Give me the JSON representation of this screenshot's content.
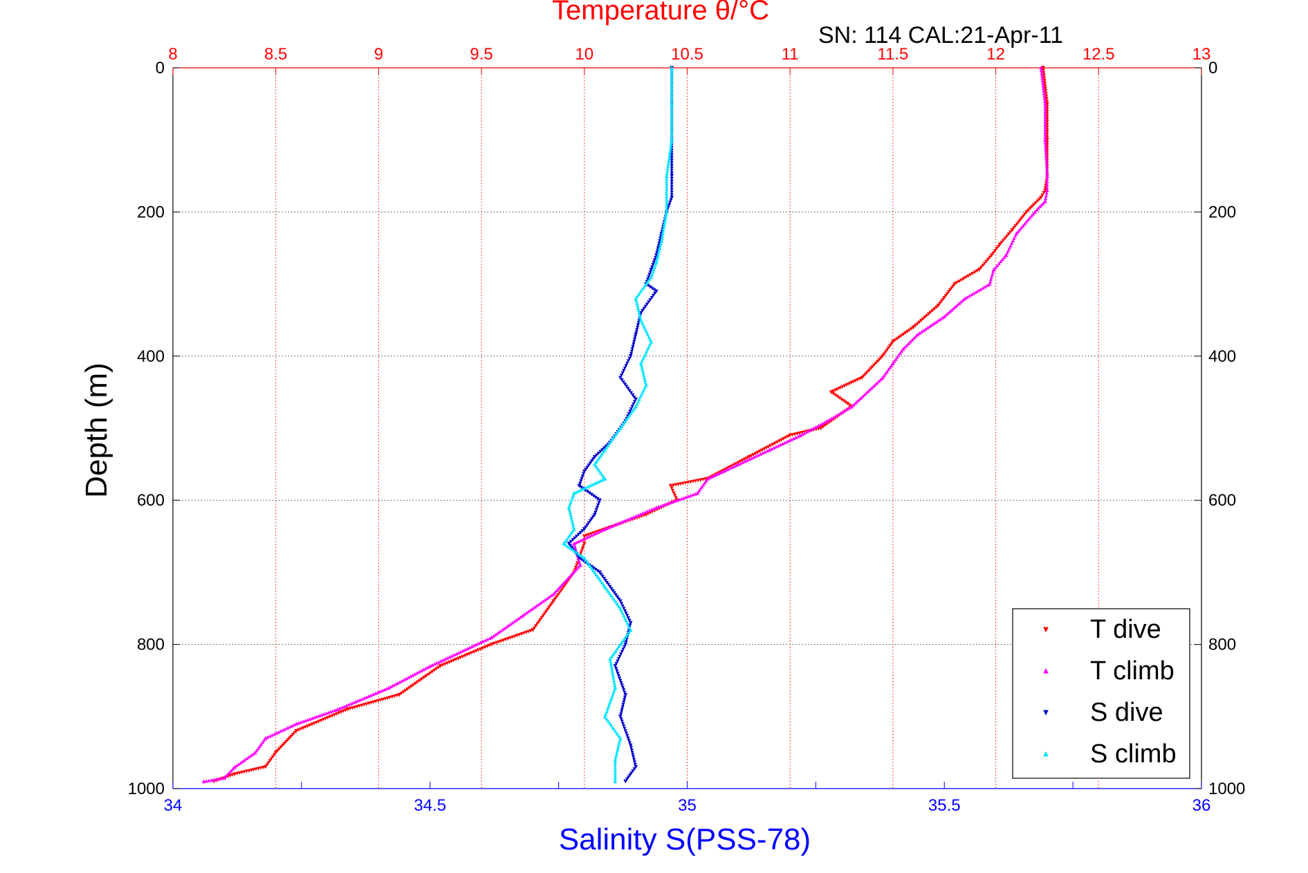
{
  "chart_data": {
    "type": "scatter",
    "title": "Temperature θ/°C",
    "subtitle": "SN: 114  CAL:21-Apr-11",
    "xlabel": "Salinity S(PSS-78)",
    "ylabel": "Depth (m)",
    "x_top": {
      "label": "Temperature θ/°C",
      "lim": [
        8,
        13
      ],
      "ticks": [
        "8",
        "8.5",
        "9",
        "9.5",
        "10",
        "10.5",
        "11",
        "11.5",
        "12",
        "12.5",
        "13"
      ],
      "color": "#ff0000"
    },
    "x_bottom": {
      "label": "Salinity S(PSS-78)",
      "lim": [
        34,
        36
      ],
      "ticks": [
        "34",
        "34.5",
        "35",
        "35.5",
        "36"
      ],
      "color": "#0000ff"
    },
    "y": {
      "lim": [
        0,
        1000
      ],
      "reversed": true,
      "ticks": [
        "0",
        "200",
        "400",
        "600",
        "800",
        "1000"
      ]
    },
    "grid": true,
    "legend_position": "bottom-right",
    "legend": [
      "T dive",
      "T climb",
      "S dive",
      "S climb"
    ],
    "series": [
      {
        "name": "T dive",
        "axis": "temperature",
        "color": "#ff0000",
        "marker": "triangle-down",
        "points": [
          [
            12.23,
            0
          ],
          [
            12.25,
            50
          ],
          [
            12.25,
            100
          ],
          [
            12.25,
            150
          ],
          [
            12.24,
            170
          ],
          [
            12.22,
            180
          ],
          [
            12.15,
            200
          ],
          [
            12.08,
            225
          ],
          [
            12.02,
            245
          ],
          [
            11.98,
            260
          ],
          [
            11.92,
            280
          ],
          [
            11.8,
            300
          ],
          [
            11.72,
            330
          ],
          [
            11.6,
            360
          ],
          [
            11.5,
            380
          ],
          [
            11.45,
            400
          ],
          [
            11.35,
            430
          ],
          [
            11.2,
            450
          ],
          [
            11.3,
            470
          ],
          [
            11.15,
            500
          ],
          [
            11.0,
            510
          ],
          [
            10.8,
            540
          ],
          [
            10.6,
            570
          ],
          [
            10.42,
            580
          ],
          [
            10.45,
            600
          ],
          [
            10.3,
            620
          ],
          [
            10.0,
            650
          ],
          [
            10.0,
            660
          ],
          [
            9.95,
            700
          ],
          [
            9.85,
            740
          ],
          [
            9.75,
            780
          ],
          [
            9.55,
            800
          ],
          [
            9.3,
            830
          ],
          [
            9.1,
            870
          ],
          [
            8.85,
            890
          ],
          [
            8.6,
            920
          ],
          [
            8.5,
            950
          ],
          [
            8.45,
            970
          ],
          [
            8.3,
            980
          ],
          [
            8.2,
            990
          ]
        ]
      },
      {
        "name": "T climb",
        "axis": "temperature",
        "color": "#ff00ff",
        "marker": "triangle-up",
        "points": [
          [
            12.22,
            0
          ],
          [
            12.24,
            50
          ],
          [
            12.24,
            100
          ],
          [
            12.25,
            150
          ],
          [
            12.25,
            170
          ],
          [
            12.24,
            185
          ],
          [
            12.19,
            200
          ],
          [
            12.1,
            230
          ],
          [
            12.05,
            260
          ],
          [
            11.99,
            280
          ],
          [
            11.97,
            300
          ],
          [
            11.85,
            320
          ],
          [
            11.75,
            345
          ],
          [
            11.62,
            370
          ],
          [
            11.55,
            390
          ],
          [
            11.5,
            410
          ],
          [
            11.45,
            430
          ],
          [
            11.3,
            470
          ],
          [
            11.18,
            490
          ],
          [
            11.05,
            510
          ],
          [
            10.9,
            530
          ],
          [
            10.75,
            550
          ],
          [
            10.6,
            570
          ],
          [
            10.55,
            590
          ],
          [
            10.35,
            610
          ],
          [
            10.1,
            640
          ],
          [
            9.95,
            660
          ],
          [
            9.98,
            690
          ],
          [
            9.85,
            730
          ],
          [
            9.7,
            760
          ],
          [
            9.55,
            790
          ],
          [
            9.25,
            830
          ],
          [
            9.05,
            860
          ],
          [
            8.8,
            890
          ],
          [
            8.6,
            910
          ],
          [
            8.45,
            930
          ],
          [
            8.4,
            950
          ],
          [
            8.3,
            970
          ],
          [
            8.25,
            985
          ],
          [
            8.15,
            990
          ]
        ]
      },
      {
        "name": "S dive",
        "axis": "salinity",
        "color": "#0000cc",
        "marker": "triangle-down",
        "points": [
          [
            34.97,
            0
          ],
          [
            34.97,
            50
          ],
          [
            34.97,
            100
          ],
          [
            34.97,
            150
          ],
          [
            34.97,
            180
          ],
          [
            34.96,
            200
          ],
          [
            34.95,
            230
          ],
          [
            34.94,
            260
          ],
          [
            34.93,
            280
          ],
          [
            34.92,
            300
          ],
          [
            34.94,
            310
          ],
          [
            34.91,
            340
          ],
          [
            34.9,
            370
          ],
          [
            34.89,
            400
          ],
          [
            34.87,
            430
          ],
          [
            34.9,
            460
          ],
          [
            34.88,
            490
          ],
          [
            34.85,
            520
          ],
          [
            34.82,
            540
          ],
          [
            34.8,
            560
          ],
          [
            34.79,
            580
          ],
          [
            34.83,
            600
          ],
          [
            34.82,
            620
          ],
          [
            34.8,
            640
          ],
          [
            34.77,
            660
          ],
          [
            34.79,
            680
          ],
          [
            34.83,
            700
          ],
          [
            34.87,
            740
          ],
          [
            34.89,
            770
          ],
          [
            34.88,
            800
          ],
          [
            34.86,
            830
          ],
          [
            34.88,
            870
          ],
          [
            34.87,
            900
          ],
          [
            34.89,
            940
          ],
          [
            34.9,
            970
          ],
          [
            34.88,
            990
          ]
        ]
      },
      {
        "name": "S climb",
        "axis": "salinity",
        "color": "#00e5ff",
        "marker": "triangle-up",
        "points": [
          [
            34.97,
            0
          ],
          [
            34.97,
            50
          ],
          [
            34.97,
            100
          ],
          [
            34.96,
            150
          ],
          [
            34.96,
            200
          ],
          [
            34.95,
            240
          ],
          [
            34.94,
            270
          ],
          [
            34.93,
            290
          ],
          [
            34.9,
            320
          ],
          [
            34.91,
            350
          ],
          [
            34.93,
            380
          ],
          [
            34.91,
            410
          ],
          [
            34.92,
            440
          ],
          [
            34.9,
            470
          ],
          [
            34.87,
            500
          ],
          [
            34.84,
            530
          ],
          [
            34.82,
            550
          ],
          [
            34.84,
            570
          ],
          [
            34.78,
            590
          ],
          [
            34.77,
            610
          ],
          [
            34.78,
            640
          ],
          [
            34.76,
            660
          ],
          [
            34.8,
            680
          ],
          [
            34.84,
            720
          ],
          [
            34.87,
            750
          ],
          [
            34.89,
            780
          ],
          [
            34.85,
            820
          ],
          [
            34.86,
            860
          ],
          [
            34.84,
            900
          ],
          [
            34.87,
            930
          ],
          [
            34.86,
            960
          ],
          [
            34.86,
            990
          ]
        ]
      }
    ]
  }
}
